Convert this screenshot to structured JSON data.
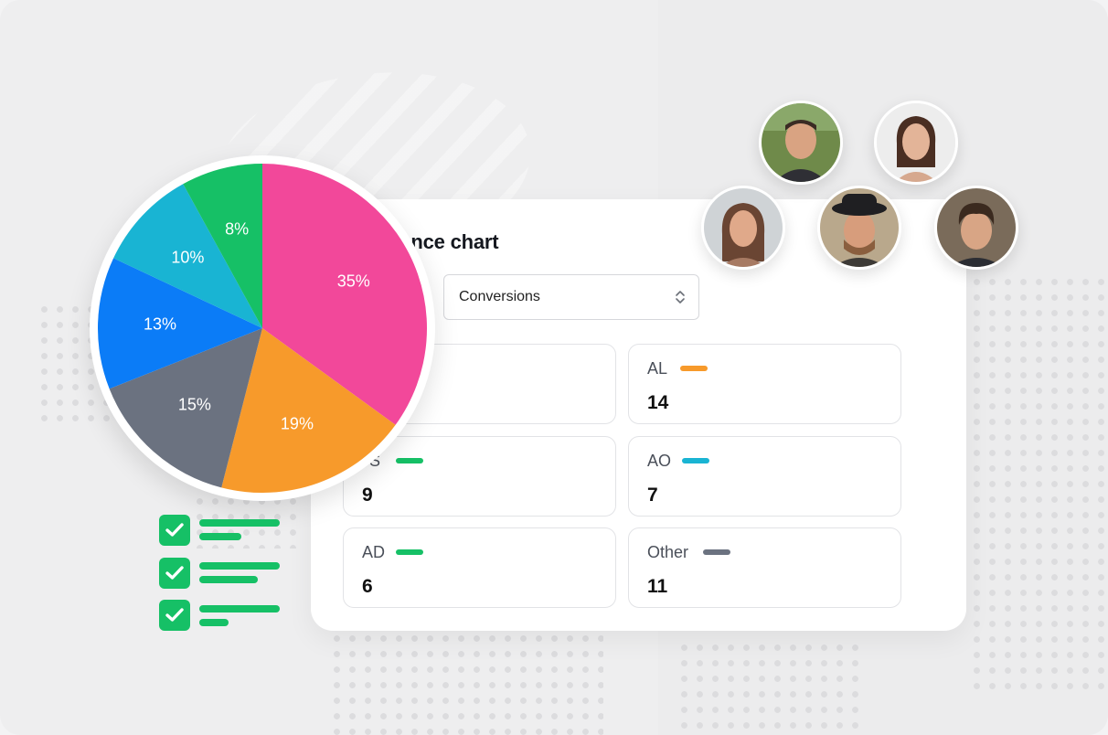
{
  "card": {
    "title": "mance chart",
    "select_value": "Conversions"
  },
  "stats": [
    {
      "label": "",
      "value": "",
      "color": ""
    },
    {
      "label": "AL",
      "value": "14",
      "color": "#f79a2b"
    },
    {
      "label": "S",
      "value": "9",
      "color": "#16c066"
    },
    {
      "label": "AO",
      "value": "7",
      "color": "#19b4d3"
    },
    {
      "label": "AD",
      "value": "6",
      "color": "#16c066"
    },
    {
      "label": "Other",
      "value": "11",
      "color": "#6b7280"
    }
  ],
  "chart_data": {
    "type": "pie",
    "slices": [
      {
        "label": "35%",
        "value": 35,
        "color": "#f2489a"
      },
      {
        "label": "19%",
        "value": 19,
        "color": "#f79a2b"
      },
      {
        "label": "15%",
        "value": 15,
        "color": "#6b7280"
      },
      {
        "label": "13%",
        "value": 13,
        "color": "#0b7cf7"
      },
      {
        "label": "10%",
        "value": 10,
        "color": "#19b4d3"
      },
      {
        "label": "8%",
        "value": 8,
        "color": "#16c066"
      }
    ]
  },
  "checklist": [
    {
      "icon": "checkmark-icon"
    },
    {
      "icon": "checkmark-icon"
    },
    {
      "icon": "checkmark-icon"
    }
  ],
  "avatars": [
    {
      "icon": "user-avatar"
    },
    {
      "icon": "user-avatar"
    },
    {
      "icon": "user-avatar"
    },
    {
      "icon": "user-avatar"
    },
    {
      "icon": "user-avatar"
    }
  ],
  "colors": {
    "accent_green": "#16c066",
    "background": "#eeeeef"
  }
}
